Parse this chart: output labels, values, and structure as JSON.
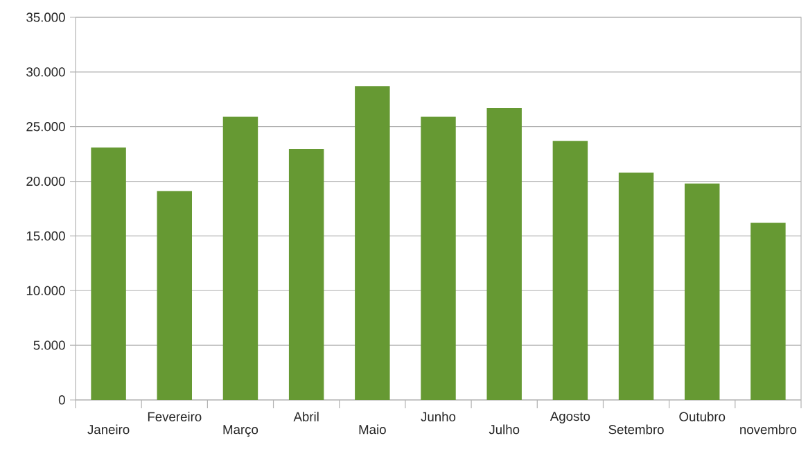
{
  "chart_data": {
    "type": "bar",
    "categories": [
      "Janeiro",
      "Fevereiro",
      "Março",
      "Abril",
      "Maio",
      "Junho",
      "Julho",
      "Agosto",
      "Setembro",
      "Outubro",
      "novembro"
    ],
    "values": [
      23100,
      19100,
      25900,
      22950,
      28700,
      25900,
      26700,
      23700,
      20800,
      19800,
      16200
    ],
    "color": "#669933",
    "ylim": [
      0,
      35000
    ],
    "yticks": [
      {
        "value": 0,
        "label": "0"
      },
      {
        "value": 5000,
        "label": "5.000"
      },
      {
        "value": 10000,
        "label": "10.000"
      },
      {
        "value": 15000,
        "label": "15.000"
      },
      {
        "value": 20000,
        "label": "20.000"
      },
      {
        "value": 25000,
        "label": "25.000"
      },
      {
        "value": 30000,
        "label": "30.000"
      },
      {
        "value": 35000,
        "label": "35.000"
      }
    ],
    "grid": "y"
  }
}
